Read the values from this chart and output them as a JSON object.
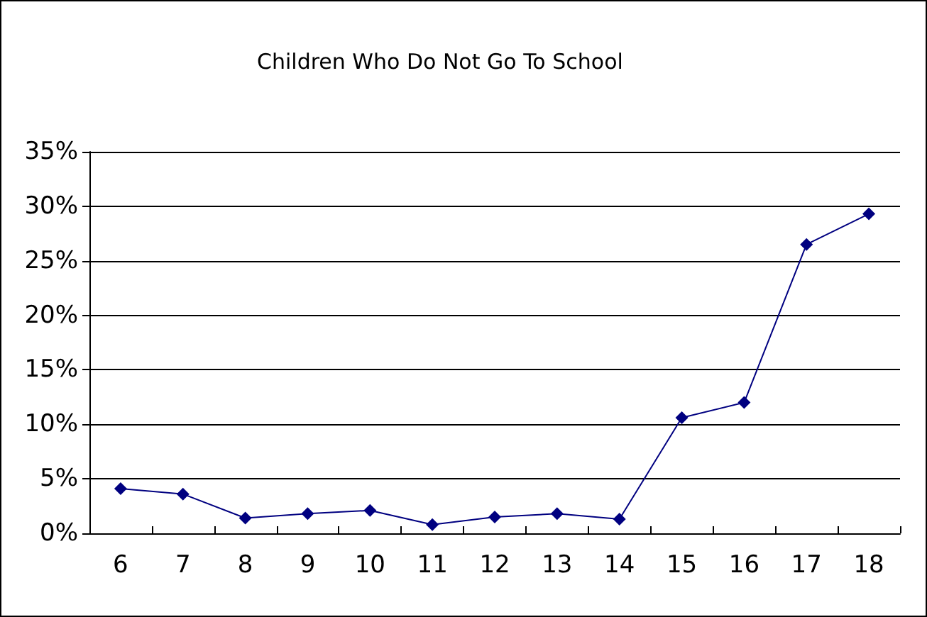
{
  "chart_data": {
    "type": "line",
    "title": "Children Who Do Not Go To School",
    "categories": [
      "6",
      "7",
      "8",
      "9",
      "10",
      "11",
      "12",
      "13",
      "14",
      "15",
      "16",
      "17",
      "18"
    ],
    "series": [
      {
        "color": "#000080",
        "values": [
          4.1,
          3.6,
          1.4,
          1.8,
          2.1,
          0.8,
          1.5,
          1.8,
          1.3,
          10.6,
          12.0,
          26.5,
          29.3
        ]
      }
    ],
    "ylim": [
      0,
      35
    ],
    "yticks": [
      {
        "value": 0,
        "label": "0%"
      },
      {
        "value": 5,
        "label": "5%"
      },
      {
        "value": 10,
        "label": "10%"
      },
      {
        "value": 15,
        "label": "15%"
      },
      {
        "value": 20,
        "label": "20%"
      },
      {
        "value": 25,
        "label": "25%"
      },
      {
        "value": 30,
        "label": "30%"
      },
      {
        "value": 35,
        "label": "35%"
      }
    ],
    "grid": "y",
    "legend": false,
    "marker": "diamond",
    "line_style": "solid"
  }
}
